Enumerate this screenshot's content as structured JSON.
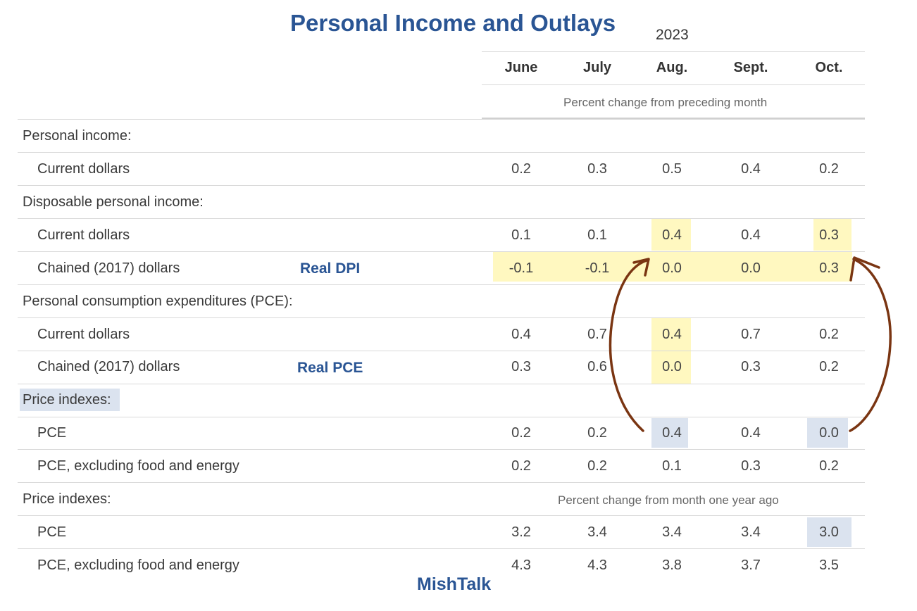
{
  "title": "Personal Income and Outlays",
  "year": "2023",
  "months": [
    "June",
    "July",
    "Aug.",
    "Sept.",
    "Oct."
  ],
  "subheading_monthly": "Percent change from preceding month",
  "subheading_yearly": "Percent change from month one year ago",
  "rows": [
    {
      "label": "Personal income:",
      "values": []
    },
    {
      "label": "Current dollars",
      "values": [
        "0.2",
        "0.3",
        "0.5",
        "0.4",
        "0.2"
      ]
    },
    {
      "label": "Disposable personal income:",
      "values": []
    },
    {
      "label": "Current dollars",
      "values": [
        "0.1",
        "0.1",
        "0.4",
        "0.4",
        "0.3"
      ]
    },
    {
      "label": "Chained (2017) dollars",
      "values": [
        "-0.1",
        "-0.1",
        "0.0",
        "0.0",
        "0.3"
      ]
    },
    {
      "label": "Personal consumption expenditures (PCE):",
      "values": []
    },
    {
      "label": "Current dollars",
      "values": [
        "0.4",
        "0.7",
        "0.4",
        "0.7",
        "0.2"
      ]
    },
    {
      "label": "Chained (2017) dollars",
      "values": [
        "0.3",
        "0.6",
        "0.0",
        "0.3",
        "0.2"
      ]
    },
    {
      "label": "Price indexes:",
      "values": []
    },
    {
      "label": "PCE",
      "values": [
        "0.2",
        "0.2",
        "0.4",
        "0.4",
        "0.0"
      ]
    },
    {
      "label": "PCE, excluding food and energy",
      "values": [
        "0.2",
        "0.2",
        "0.1",
        "0.3",
        "0.2"
      ]
    },
    {
      "label": "Price indexes:",
      "values": []
    },
    {
      "label": "PCE",
      "values": [
        "3.2",
        "3.4",
        "3.4",
        "3.4",
        "3.0"
      ]
    },
    {
      "label": "PCE, excluding food and energy",
      "values": [
        "4.3",
        "4.3",
        "3.8",
        "3.7",
        "3.5"
      ]
    }
  ],
  "annotations": {
    "real_dpi": "Real DPI",
    "real_pce": "Real PCE",
    "brand": "MishTalk"
  },
  "colors": {
    "title": "#2a5594",
    "highlight_yellow": "#fff8c0",
    "highlight_blue": "#dbe3ef",
    "arrow": "#7a3512"
  }
}
